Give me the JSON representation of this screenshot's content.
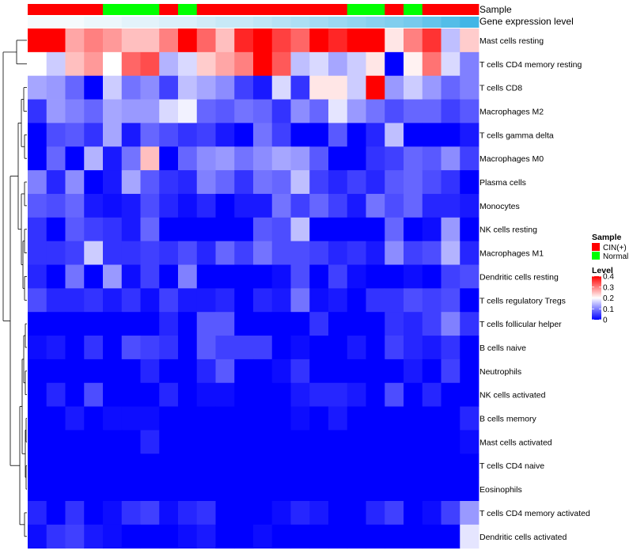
{
  "chart_data": {
    "type": "heatmap",
    "title": "",
    "annotations": {
      "sample_label": "Sample",
      "level_label": "Gene expression level",
      "sample_groups": [
        "CIN",
        "CIN",
        "CIN",
        "CIN",
        "Normal",
        "Normal",
        "Normal",
        "CIN",
        "Normal",
        "CIN",
        "CIN",
        "CIN",
        "CIN",
        "CIN",
        "CIN",
        "CIN",
        "CIN",
        "Normal",
        "Normal",
        "CIN",
        "Normal",
        "CIN",
        "CIN",
        "CIN"
      ],
      "expression_levels": [
        0.0,
        0.0,
        0.0,
        0.01,
        0.01,
        0.02,
        0.02,
        0.03,
        0.03,
        0.04,
        0.05,
        0.05,
        0.06,
        0.07,
        0.08,
        0.09,
        0.1,
        0.11,
        0.12,
        0.13,
        0.14,
        0.16,
        0.18,
        0.2
      ]
    },
    "rows": [
      "Mast cells resting",
      "T cells CD4 memory resting",
      "T cells CD8",
      "Macrophages M2",
      "T cells gamma delta",
      "Macrophages M0",
      "Plasma cells",
      "Monocytes",
      "NK cells resting",
      "Macrophages M1",
      "Dendritic cells resting",
      "T cells regulatory  Tregs",
      "T cells follicular helper",
      "B cells naive",
      "Neutrophils",
      "NK cells activated",
      "B cells memory",
      "Mast cells activated",
      "T cells CD4 naive",
      "Eosinophils",
      "T cells CD4 memory activated",
      "Dendritic cells activated"
    ],
    "values": [
      [
        0.4,
        0.4,
        0.27,
        0.3,
        0.28,
        0.25,
        0.25,
        0.3,
        0.4,
        0.32,
        0.25,
        0.37,
        0.4,
        0.35,
        0.32,
        0.4,
        0.37,
        0.4,
        0.4,
        0.22,
        0.3,
        0.36,
        0.15,
        0.24
      ],
      [
        0.2,
        0.16,
        0.25,
        0.28,
        0.2,
        0.32,
        0.34,
        0.14,
        0.17,
        0.24,
        0.27,
        0.3,
        0.4,
        0.33,
        0.15,
        0.17,
        0.13,
        0.16,
        0.22,
        0.0,
        0.21,
        0.31,
        0.17,
        0.1
      ],
      [
        0.13,
        0.12,
        0.08,
        0.0,
        0.16,
        0.09,
        0.11,
        0.05,
        0.15,
        0.13,
        0.11,
        0.05,
        0.02,
        0.17,
        0.04,
        0.22,
        0.22,
        0.16,
        0.4,
        0.12,
        0.16,
        0.12,
        0.08,
        0.1
      ],
      [
        0.04,
        0.12,
        0.1,
        0.08,
        0.13,
        0.12,
        0.12,
        0.17,
        0.19,
        0.08,
        0.07,
        0.09,
        0.08,
        0.04,
        0.11,
        0.08,
        0.18,
        0.12,
        0.09,
        0.06,
        0.08,
        0.08,
        0.05,
        0.07
      ],
      [
        0.0,
        0.06,
        0.07,
        0.04,
        0.13,
        0.02,
        0.08,
        0.06,
        0.04,
        0.05,
        0.02,
        0.0,
        0.09,
        0.05,
        0.0,
        0.0,
        0.07,
        0.0,
        0.03,
        0.15,
        0.0,
        0.0,
        0.0,
        0.02
      ],
      [
        0.0,
        0.08,
        0.0,
        0.14,
        0.02,
        0.09,
        0.25,
        0.0,
        0.08,
        0.11,
        0.12,
        0.09,
        0.11,
        0.13,
        0.12,
        0.07,
        0.0,
        0.0,
        0.04,
        0.05,
        0.08,
        0.07,
        0.11,
        0.05
      ],
      [
        0.1,
        0.03,
        0.11,
        0.0,
        0.02,
        0.13,
        0.07,
        0.04,
        0.03,
        0.1,
        0.08,
        0.04,
        0.09,
        0.08,
        0.15,
        0.05,
        0.03,
        0.05,
        0.03,
        0.07,
        0.08,
        0.06,
        0.04,
        0.0
      ],
      [
        0.07,
        0.06,
        0.08,
        0.02,
        0.01,
        0.02,
        0.06,
        0.03,
        0.01,
        0.03,
        0.0,
        0.02,
        0.02,
        0.09,
        0.05,
        0.08,
        0.05,
        0.02,
        0.09,
        0.06,
        0.08,
        0.03,
        0.03,
        0.02
      ],
      [
        0.04,
        0.0,
        0.07,
        0.05,
        0.04,
        0.02,
        0.08,
        0.0,
        0.0,
        0.0,
        0.0,
        0.0,
        0.07,
        0.06,
        0.15,
        0.0,
        0.0,
        0.0,
        0.0,
        0.08,
        0.0,
        0.01,
        0.12,
        0.0
      ],
      [
        0.04,
        0.04,
        0.05,
        0.16,
        0.04,
        0.04,
        0.05,
        0.04,
        0.06,
        0.03,
        0.08,
        0.05,
        0.09,
        0.06,
        0.06,
        0.05,
        0.03,
        0.04,
        0.02,
        0.11,
        0.05,
        0.06,
        0.14,
        0.03
      ],
      [
        0.03,
        0.0,
        0.09,
        0.0,
        0.12,
        0.01,
        0.05,
        0.0,
        0.1,
        0.0,
        0.0,
        0.0,
        0.0,
        0.01,
        0.06,
        0.0,
        0.05,
        0.01,
        0.0,
        0.0,
        0.01,
        0.0,
        0.05,
        0.06
      ],
      [
        0.06,
        0.03,
        0.03,
        0.04,
        0.02,
        0.04,
        0.01,
        0.05,
        0.02,
        0.02,
        0.03,
        0.0,
        0.03,
        0.02,
        0.09,
        0.01,
        0.02,
        0.0,
        0.04,
        0.04,
        0.06,
        0.05,
        0.06,
        0.0
      ],
      [
        0.0,
        0.0,
        0.0,
        0.0,
        0.0,
        0.0,
        0.0,
        0.03,
        0.0,
        0.07,
        0.07,
        0.0,
        0.0,
        0.0,
        0.0,
        0.04,
        0.0,
        0.0,
        0.0,
        0.04,
        0.03,
        0.05,
        0.1,
        0.04
      ],
      [
        0.01,
        0.02,
        0.0,
        0.04,
        0.0,
        0.06,
        0.05,
        0.04,
        0.0,
        0.07,
        0.05,
        0.05,
        0.05,
        0.0,
        0.01,
        0.0,
        0.0,
        0.02,
        0.0,
        0.05,
        0.03,
        0.02,
        0.04,
        0.0
      ],
      [
        0.0,
        0.0,
        0.0,
        0.0,
        0.0,
        0.0,
        0.03,
        0.0,
        0.0,
        0.03,
        0.07,
        0.0,
        0.0,
        0.01,
        0.04,
        0.0,
        0.0,
        0.0,
        0.0,
        0.0,
        0.02,
        0.0,
        0.05,
        0.0
      ],
      [
        0.0,
        0.03,
        0.0,
        0.06,
        0.0,
        0.0,
        0.0,
        0.03,
        0.0,
        0.01,
        0.01,
        0.0,
        0.0,
        0.0,
        0.02,
        0.03,
        0.03,
        0.02,
        0.0,
        0.06,
        0.0,
        0.03,
        0.0,
        0.0
      ],
      [
        0.0,
        0.0,
        0.02,
        0.0,
        0.01,
        0.01,
        0.01,
        0.0,
        0.0,
        0.0,
        0.0,
        0.0,
        0.0,
        0.0,
        0.01,
        0.0,
        0.02,
        0.0,
        0.0,
        0.0,
        0.0,
        0.0,
        0.0,
        0.03
      ],
      [
        0.0,
        0.0,
        0.0,
        0.0,
        0.0,
        0.0,
        0.03,
        0.0,
        0.0,
        0.0,
        0.0,
        0.0,
        0.0,
        0.0,
        0.0,
        0.0,
        0.0,
        0.0,
        0.0,
        0.0,
        0.0,
        0.0,
        0.0,
        0.01
      ],
      [
        0.0,
        0.0,
        0.0,
        0.0,
        0.0,
        0.0,
        0.0,
        0.0,
        0.0,
        0.0,
        0.0,
        0.0,
        0.0,
        0.0,
        0.0,
        0.0,
        0.0,
        0.0,
        0.0,
        0.0,
        0.0,
        0.0,
        0.0,
        0.0
      ],
      [
        0.0,
        0.0,
        0.0,
        0.0,
        0.0,
        0.0,
        0.0,
        0.0,
        0.0,
        0.0,
        0.0,
        0.0,
        0.0,
        0.0,
        0.0,
        0.0,
        0.0,
        0.0,
        0.0,
        0.0,
        0.0,
        0.0,
        0.0,
        0.0
      ],
      [
        0.03,
        0.0,
        0.04,
        0.0,
        0.01,
        0.04,
        0.05,
        0.01,
        0.03,
        0.04,
        0.0,
        0.0,
        0.0,
        0.01,
        0.03,
        0.02,
        0.0,
        0.0,
        0.03,
        0.05,
        0.0,
        0.01,
        0.05,
        0.12
      ],
      [
        0.01,
        0.04,
        0.05,
        0.02,
        0.01,
        0.0,
        0.0,
        0.0,
        0.01,
        0.02,
        0.0,
        0.0,
        0.01,
        0.0,
        0.0,
        0.0,
        0.0,
        0.0,
        0.0,
        0.0,
        0.0,
        0.0,
        0.0,
        0.18
      ]
    ],
    "legend": {
      "sample_title": "Sample",
      "sample_entries": [
        {
          "name": "CIN(+)",
          "color": "#ff0000"
        },
        {
          "name": "Normal",
          "color": "#00ff00"
        }
      ],
      "level_title": "Level",
      "level_range": [
        0,
        0.4
      ],
      "level_ticks": [
        {
          "value": 0.4,
          "label": "0.4"
        },
        {
          "value": 0.3,
          "label": "0.3"
        },
        {
          "value": 0.2,
          "label": "0.2"
        },
        {
          "value": 0.1,
          "label": "0.1"
        },
        {
          "value": 0.0,
          "label": "0"
        }
      ],
      "placement": "right"
    },
    "colors": {
      "low": "#0000ff",
      "mid": "#ffffff",
      "high": "#ff0000",
      "annotation_low": "#f5fafd",
      "annotation_high": "#41b6e6"
    }
  }
}
